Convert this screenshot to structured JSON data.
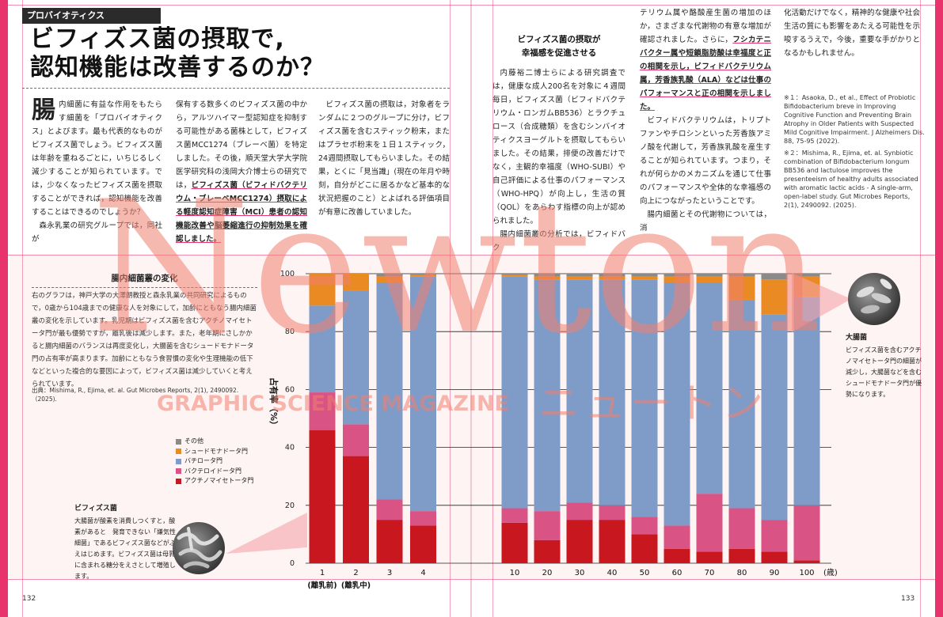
{
  "header": {
    "category": "プロバイオティクス",
    "title_line1": "ビフィズス菌の摂取で,",
    "title_line2": "認知機能は改善するのか？"
  },
  "left_page": {
    "col1_dropcap": "腸",
    "col1_text": "内細菌に有益な作用をもたらす細菌を「プロバイオティクス」とよびます。最も代表的なものがビフィズス菌でしょう。ビフィズス菌は年齢を重ねるごとに，いちじるしく減少することが知られています。では，少なくなったビフィズス菌を摂取することができれば，認知機能を改善することはできるのでしょうか？",
    "col1_text2": "森永乳業の研究グループでは，同社が",
    "col2_text": "保有する数多くのビフィズス菌の中から，アルツハイマー型認知症を抑制する可能性がある菌株として，ビフィズス菌MCC1274（ブレーベ菌）を特定しました。その後，順天堂大学大学院医学研究科の浅岡大介博士らの研究では，",
    "col2_highlight": "ビフィズス菌（ビフィドバクテリウム・ブレーベMCC1274）摂取による軽度認知症障害（MCI）患者の認知機能改善や脳萎縮進行の抑制効果を確認しました。",
    "col3_text": "ビフィズス菌の摂取は，対象者をランダムに２つのグループに分け，ビフィズス菌を含むスティック粉末，またはプラセボ粉末を１日１スティック，24週間摂取してもらいました。その結果，とくに「見当識」(現在の年月や時刻，自分がどこに居るかなど基本的な状況把握のこと）とよばれる評価項目が有意に改善していました。"
  },
  "right_page": {
    "subhead_line1": "ビフィズス菌の摂取が",
    "subhead_line2": "幸福感を促進させる",
    "col4_text": "内藤裕二博士らによる研究調査では，健康な成人200名を対象に４週間毎日，ビフィズス菌（ビフィドバクテリウム・ロンガムBB536）とラクチュロース（合成糖類）を含むシンバイオティクスヨーグルトを摂取してもらいました。その結果，排便の改善だけでなく，主観的幸福度（WHO-SUBI）や自己評価による仕事のパフォーマンス（WHO-HPQ）が向上し，生活の質（QOL）をあらわす指標の向上が認められました。",
    "col4_text2": "腸内細菌叢の分析では，ビフィドバク",
    "col5_text": "テリウム属や酪酸産生菌の増加のほか，さまざまな代謝物の有意な増加が確認されました。さらに，",
    "col5_highlight": "フシカテニバクター属や短鎖脂肪酸は幸福度と正の相関を示し，ビフィドバクテリウム属，芳香族乳酸（ALA）などは仕事のパフォーマンスと正の相関を示しました。",
    "col5_text2": "ビフィドバクテリウムは，トリプトファンやチロシンといった芳香族アミノ酸を代謝して，芳香族乳酸を産生することが知られています。つまり，それが何らかのメカニズムを通じて仕事のパフォーマンスや全体的な幸福感の向上につながったということです。",
    "col5_text3": "腸内細菌とその代謝物については，消",
    "col6_text": "化活動だけでなく，精神的な健康や社会生活の質にも影響をあたえる可能性を示唆するうえで，今後，重要な手がかりとなるかもしれません。",
    "note1": "※１：Asaoka, D., et al., Effect of Probiotic Bifidobacterium breve in Improving Cognitive Function and Preventing Brain Atrophy in Older Patients with Suspected Mild Cognitive Impairment. J Alzheimers Dis. 88, 75-95 (2022).",
    "note2": "※２：Mishima, R., Ejima, et. al. Synbiotic combination of Bifidobacterium longum BB536 and lactulose improves the presenteeism of healthy adults associated with aromatic lactic acids - A single-arm, open-label study. Gut Microbes Reports, 2(1), 2490092. (2025)."
  },
  "watermark": {
    "main": "Newton",
    "sub": "GRAPHIC SCIENCE MAGAZINE",
    "kana": "ニュートン"
  },
  "figure": {
    "title": "腸内細菌叢の変化",
    "desc": "右のグラフは，神戸大学の大澤朗教授と森永乳業の共同研究によるもので，0歳から104歳までの健康な人を対象にして，加齢にともなう腸内細菌叢の変化を示しています。乳児期はビフィズス菌を含むアクチノマイセトータ門が最も優勢ですが，離乳後は減少します。また，老年期にさしかかると腸内細菌のバランスは再度変化し，大腸菌を含むシュードモナドータ門の占有率が高まります。加齢にともなう食習慣の変化や生理機能の低下などといった複合的な要因によって，ビフィズス菌は減少していくと考えられています。",
    "source": "出典：Mishima, R., Ejima, et. al. Gut Microbes Reports, 2(1), 2490092.（2025).",
    "caption_left_title": "ビフィズス菌",
    "caption_left_text": "大腸菌が酸素を消費しつくすと，酸素があると　発育できない「嫌気性細菌」であるビフィズス菌などがふえはじめます。ビフィズス菌は母乳に含まれる糖分をえさとして増殖します。",
    "caption_right_title": "大腸菌",
    "caption_right_text": "ビフィズス菌を含むアクチノマイセトータ門の細菌が減少し，大腸菌などを含むシュードモナドータ門が優勢になります。"
  },
  "chart_data": {
    "type": "bar",
    "stacked": true,
    "categories": [
      "1",
      "2",
      "3",
      "4",
      "10",
      "20",
      "30",
      "40",
      "50",
      "60",
      "70",
      "80",
      "90",
      "100"
    ],
    "tick_labels_under": [
      "(離乳前)",
      "(離乳中)"
    ],
    "xlabel": "(歳)",
    "ylabel": "占有率（%）",
    "ylim": [
      0,
      100
    ],
    "yticks": [
      0,
      20,
      40,
      60,
      80,
      100
    ],
    "grid": true,
    "legend": [
      "その他",
      "シュードモナドータ門",
      "バチロータ門",
      "バクテロイドータ門",
      "アクチノマイセトータ門"
    ],
    "series": [
      {
        "name": "アクチノマイセトータ門",
        "color": "#c8171e",
        "values": [
          46,
          37,
          15,
          13,
          14,
          8,
          15,
          15,
          10,
          5,
          4,
          5,
          4,
          1
        ]
      },
      {
        "name": "バクテロイドータ門",
        "color": "#d95385",
        "values": [
          13,
          11,
          7,
          5,
          5,
          10,
          6,
          5,
          6,
          8,
          20,
          14,
          11,
          19
        ]
      },
      {
        "name": "バチロータ門",
        "color": "#7f9cc9",
        "values": [
          30,
          46,
          75,
          81,
          80,
          80,
          77,
          78,
          82,
          84,
          73,
          72,
          71,
          72
        ]
      },
      {
        "name": "シュードモナドータ門",
        "color": "#e98a22",
        "values": [
          11,
          6,
          2,
          0.5,
          0.5,
          1,
          1,
          1,
          1,
          2,
          2,
          8,
          12,
          7
        ]
      },
      {
        "name": "その他",
        "color": "#8a8a8a",
        "values": [
          0,
          0,
          1,
          0.5,
          0.5,
          1,
          1,
          1,
          1,
          1,
          1,
          1,
          2,
          1
        ]
      }
    ]
  },
  "page_numbers": {
    "left": "132",
    "right": "133"
  }
}
